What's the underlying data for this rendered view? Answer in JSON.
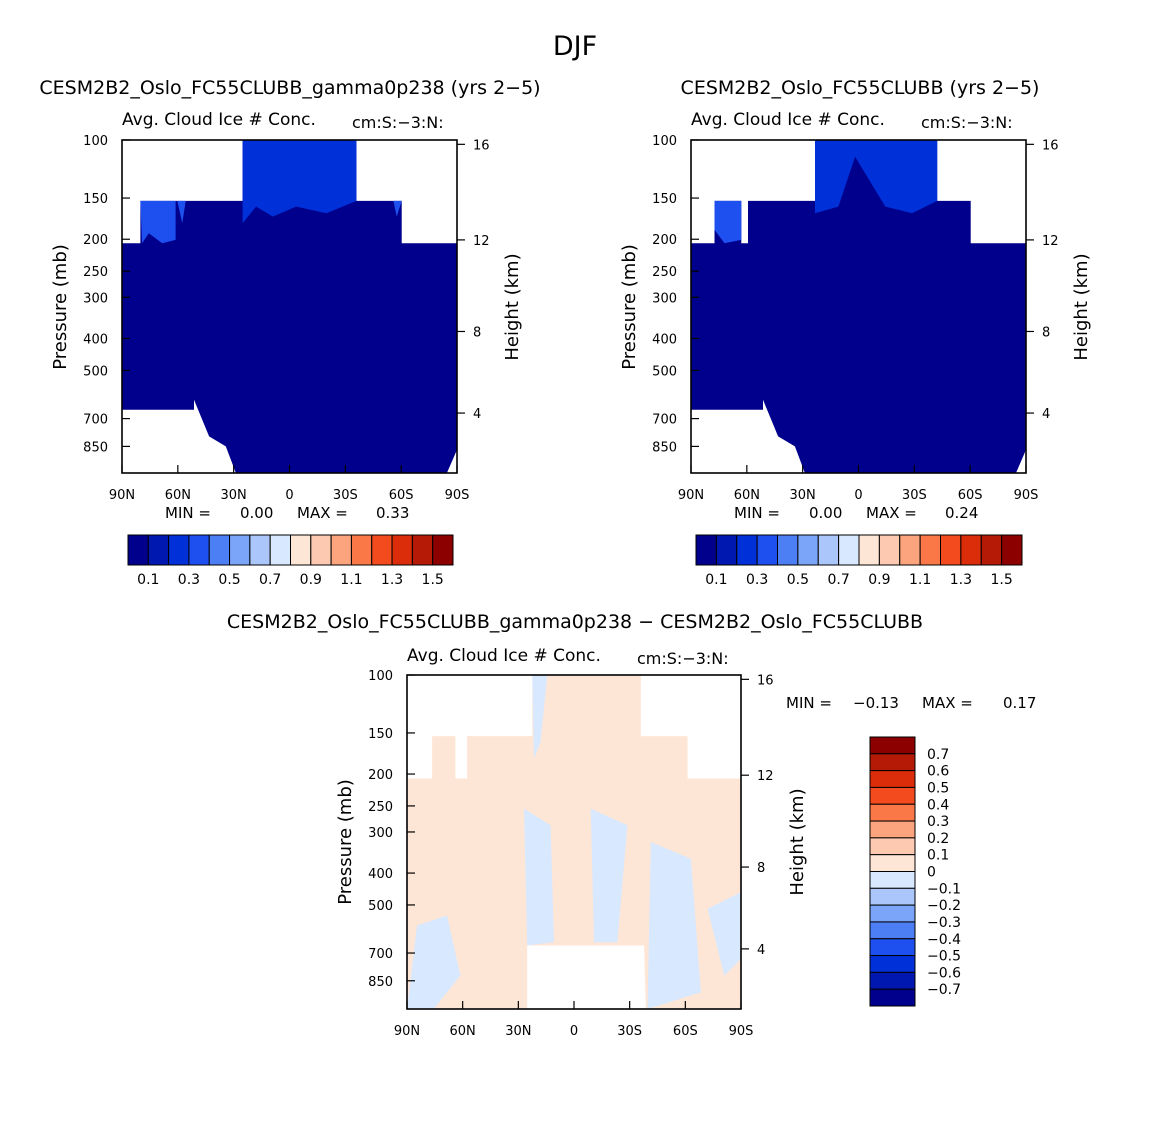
{
  "page_title": "DJF",
  "chart_data": [
    {
      "type": "heatmap",
      "title": "CESM2B2_Oslo_FC55CLUBB_gamma0p238 (yrs 2−5)",
      "subtitle": "Avg. Cloud Ice # Conc.",
      "units": "cm:S:−3:N:",
      "xlabel": "",
      "ylabel": "Pressure (mb)",
      "ylabel_right": "Height (km)",
      "x_ticks": [
        "90N",
        "60N",
        "30N",
        "0",
        "30S",
        "60S",
        "90S"
      ],
      "y_ticks": [
        "100",
        "150",
        "200",
        "250",
        "300",
        "400",
        "500",
        "700",
        "850"
      ],
      "y_ticks_right": [
        "16",
        "12",
        "8",
        "4"
      ],
      "ylim": [
        100,
        1000
      ],
      "stats": {
        "min_label": "MIN =",
        "min": "0.00",
        "max_label": "MAX =",
        "max": "0.33"
      },
      "colorbar": {
        "orientation": "horizontal",
        "labels": [
          "0.1",
          "0.3",
          "0.5",
          "0.7",
          "0.9",
          "1.1",
          "1.3",
          "1.5"
        ],
        "colors": [
          "#00008c",
          "#0018b0",
          "#0030d8",
          "#1e50f0",
          "#4c7ef4",
          "#7ba5f8",
          "#aac6fb",
          "#d8e8fe",
          "#fee6d6",
          "#fdc9b0",
          "#fca47e",
          "#fa7848",
          "#f34a1e",
          "#dc2d0a",
          "#b41a06",
          "#8c0000"
        ]
      },
      "fill_colors": {
        "main": "#00008c",
        "band1": "#0030d8",
        "band2": "#1e50f0"
      }
    },
    {
      "type": "heatmap",
      "title": "CESM2B2_Oslo_FC55CLUBB (yrs 2−5)",
      "subtitle": "Avg. Cloud Ice # Conc.",
      "units": "cm:S:−3:N:",
      "xlabel": "",
      "ylabel": "Pressure (mb)",
      "ylabel_right": "Height (km)",
      "x_ticks": [
        "90N",
        "60N",
        "30N",
        "0",
        "30S",
        "60S",
        "90S"
      ],
      "y_ticks": [
        "100",
        "150",
        "200",
        "250",
        "300",
        "400",
        "500",
        "700",
        "850"
      ],
      "y_ticks_right": [
        "16",
        "12",
        "8",
        "4"
      ],
      "ylim": [
        100,
        1000
      ],
      "stats": {
        "min_label": "MIN =",
        "min": "0.00",
        "max_label": "MAX =",
        "max": "0.24"
      },
      "colorbar": {
        "orientation": "horizontal",
        "labels": [
          "0.1",
          "0.3",
          "0.5",
          "0.7",
          "0.9",
          "1.1",
          "1.3",
          "1.5"
        ],
        "colors": [
          "#00008c",
          "#0018b0",
          "#0030d8",
          "#1e50f0",
          "#4c7ef4",
          "#7ba5f8",
          "#aac6fb",
          "#d8e8fe",
          "#fee6d6",
          "#fdc9b0",
          "#fca47e",
          "#fa7848",
          "#f34a1e",
          "#dc2d0a",
          "#b41a06",
          "#8c0000"
        ]
      },
      "fill_colors": {
        "main": "#00008c",
        "band1": "#0030d8",
        "band2": "#1e50f0"
      }
    },
    {
      "type": "heatmap",
      "title": "CESM2B2_Oslo_FC55CLUBB_gamma0p238 − CESM2B2_Oslo_FC55CLUBB",
      "subtitle": "Avg. Cloud Ice # Conc.",
      "units": "cm:S:−3:N:",
      "xlabel": "",
      "ylabel": "Pressure (mb)",
      "ylabel_right": "Height (km)",
      "x_ticks": [
        "90N",
        "60N",
        "30N",
        "0",
        "30S",
        "60S",
        "90S"
      ],
      "y_ticks": [
        "100",
        "150",
        "200",
        "250",
        "300",
        "400",
        "500",
        "700",
        "850"
      ],
      "y_ticks_right": [
        "16",
        "12",
        "8",
        "4"
      ],
      "ylim": [
        100,
        1000
      ],
      "stats": {
        "min_label": "MIN =",
        "min": "−0.13",
        "max_label": "MAX =",
        "max": "0.17"
      },
      "colorbar": {
        "orientation": "vertical",
        "labels": [
          "0.7",
          "0.6",
          "0.5",
          "0.4",
          "0.3",
          "0.2",
          "0.1",
          "0",
          "−0.1",
          "−0.2",
          "−0.3",
          "−0.4",
          "−0.5",
          "−0.6",
          "−0.7"
        ],
        "colors": [
          "#8c0000",
          "#b41a06",
          "#dc2d0a",
          "#f34a1e",
          "#fa7848",
          "#fca47e",
          "#fdc9b0",
          "#fee6d6",
          "#d8e8fe",
          "#aac6fb",
          "#7ba5f8",
          "#4c7ef4",
          "#1e50f0",
          "#0030d8",
          "#0018b0",
          "#00008c"
        ]
      },
      "fill_colors": {
        "main": "#fee6d6",
        "secondary": "#d8e8fe"
      }
    }
  ]
}
